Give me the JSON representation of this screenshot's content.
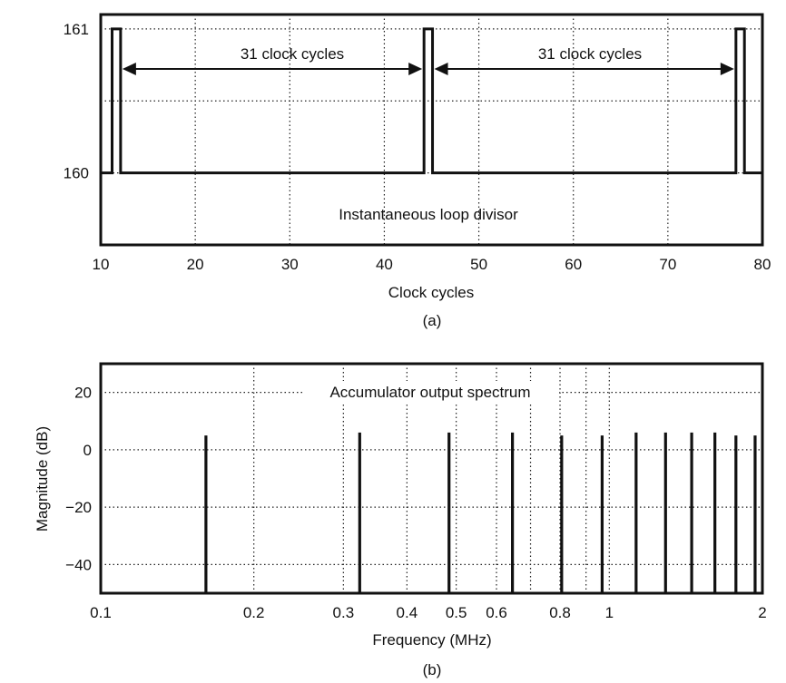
{
  "chart_data": [
    {
      "type": "line",
      "subplot_label": "(a)",
      "xlabel": "Clock cycles",
      "ylabel": "",
      "xlim": [
        10,
        80
      ],
      "ylim": [
        159.5,
        161.1
      ],
      "xticks": [
        "10",
        "20",
        "30",
        "40",
        "50",
        "60",
        "70",
        "80"
      ],
      "yticks": [
        "160",
        "161"
      ],
      "grid": true,
      "annotations": {
        "span_label_1": "31 clock cycles",
        "span_label_2": "31 clock cycles",
        "center_label": "Instantaneous loop divisor"
      },
      "pulses": [
        {
          "x_start": 11.2,
          "x_end": 12.1,
          "value": 161
        },
        {
          "x_start": 44.2,
          "x_end": 45.1,
          "value": 161
        },
        {
          "x_start": 77.2,
          "x_end": 78.1,
          "value": 161
        }
      ],
      "baseline_value": 160,
      "spans": [
        {
          "from": 12.1,
          "to": 44.2
        },
        {
          "from": 45.1,
          "to": 77.2
        }
      ]
    },
    {
      "type": "bar",
      "subplot_label": "(b)",
      "xlabel": "Frequency (MHz)",
      "ylabel": "Magnitude (dB)",
      "xscale": "log",
      "xlim": [
        0.1,
        2
      ],
      "ylim": [
        -50,
        30
      ],
      "xticks": [
        "0.1",
        "0.2",
        "0.3",
        "0.4",
        "0.5",
        "0.6",
        "0.8",
        "1",
        "2"
      ],
      "yticks": [
        "20",
        "0",
        "−20",
        "−40"
      ],
      "grid": true,
      "annotation": "Accumulator output spectrum",
      "frequencies_mhz": [
        0.161,
        0.323,
        0.484,
        0.645,
        0.806,
        0.968,
        1.129,
        1.29,
        1.452,
        1.613,
        1.774,
        1.935
      ],
      "magnitudes_db": [
        5,
        6,
        6,
        6,
        5,
        5,
        6,
        6,
        6,
        6,
        5,
        5
      ]
    }
  ]
}
